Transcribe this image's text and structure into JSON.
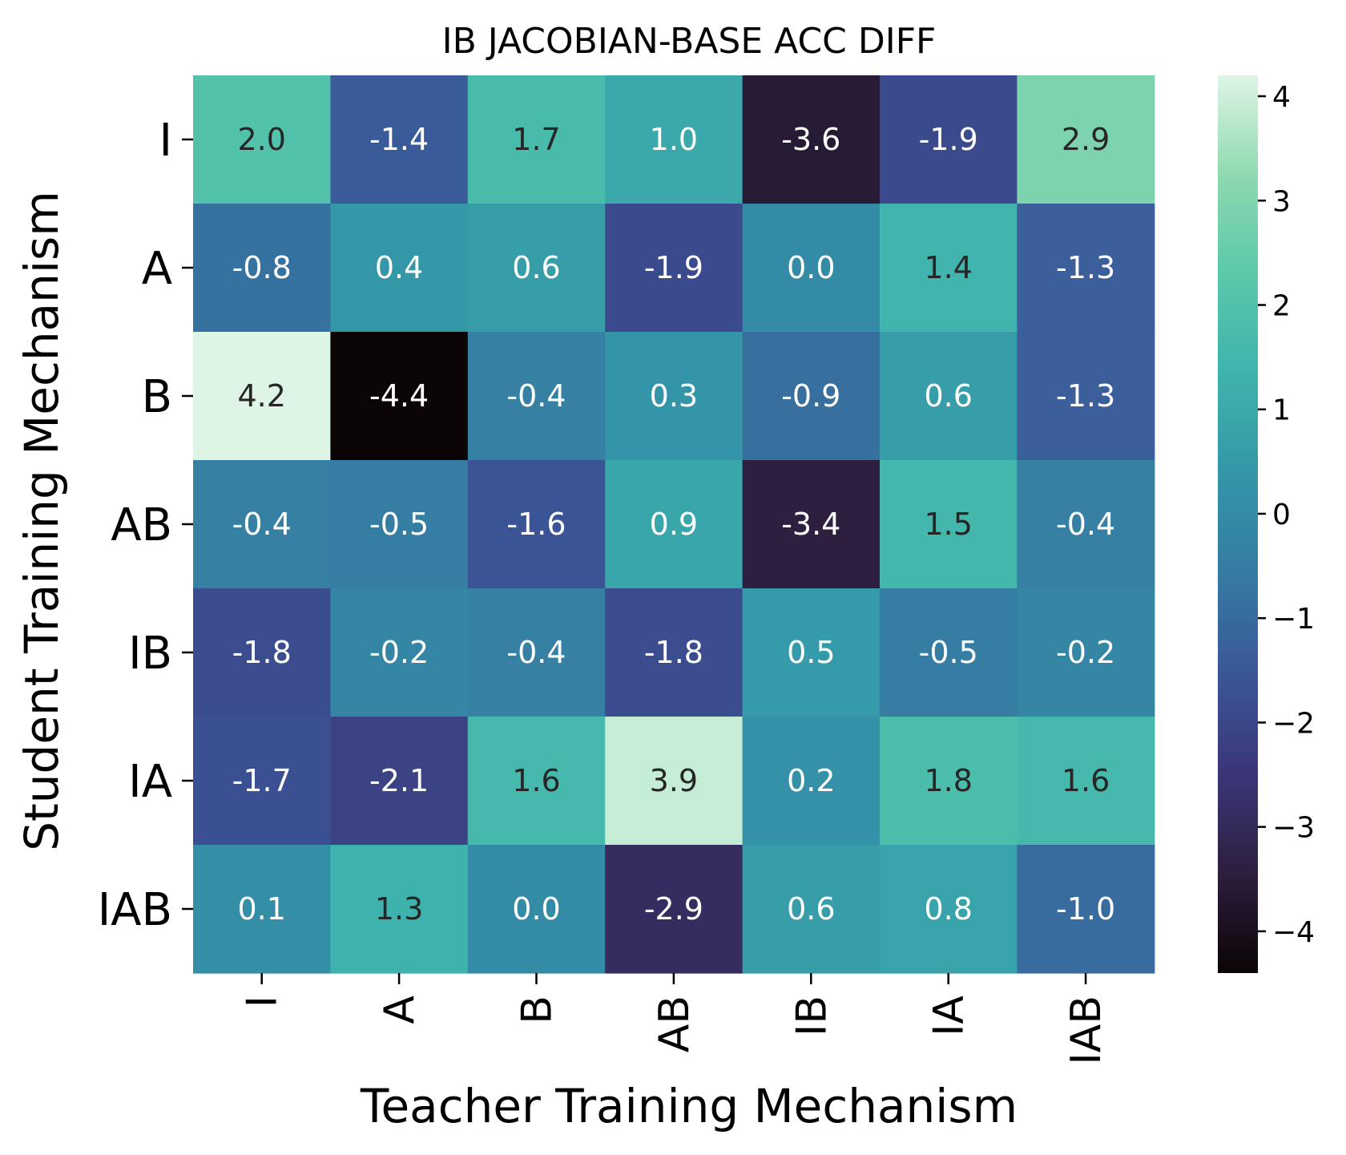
{
  "chart_data": {
    "type": "heatmap",
    "title": "IB JACOBIAN-BASE ACC DIFF",
    "xlabel": "Teacher Training Mechanism",
    "ylabel": "Student Training Mechanism",
    "x_categories": [
      "I",
      "A",
      "B",
      "AB",
      "IB",
      "IA",
      "IAB"
    ],
    "y_categories": [
      "I",
      "A",
      "B",
      "AB",
      "IB",
      "IA",
      "IAB"
    ],
    "values": [
      [
        2.0,
        -1.4,
        1.7,
        1.0,
        -3.6,
        -1.9,
        2.9
      ],
      [
        -0.8,
        0.4,
        0.6,
        -1.9,
        0.0,
        1.4,
        -1.3
      ],
      [
        4.2,
        -4.4,
        -0.4,
        0.3,
        -0.9,
        0.6,
        -1.3
      ],
      [
        -0.4,
        -0.5,
        -1.6,
        0.9,
        -3.4,
        1.5,
        -0.4
      ],
      [
        -1.8,
        -0.2,
        -0.4,
        -1.8,
        0.5,
        -0.5,
        -0.2
      ],
      [
        -1.7,
        -2.1,
        1.6,
        3.9,
        0.2,
        1.8,
        1.6
      ],
      [
        0.1,
        1.3,
        0.0,
        -2.9,
        0.6,
        0.8,
        -1.0
      ]
    ],
    "value_format": "0.0",
    "colorbar": {
      "range": [
        -4.4,
        4.2
      ],
      "ticks": [
        4,
        3,
        2,
        1,
        0,
        -1,
        -2,
        -3,
        -4
      ],
      "tick_labels": [
        "4",
        "3",
        "2",
        "1",
        "0",
        "−1",
        "−2",
        "−3",
        "−4"
      ]
    },
    "colormap": "mako",
    "colormap_stops": [
      "#0b0405",
      "#2d1e3e",
      "#3b3678",
      "#3b5698",
      "#357ba2",
      "#3496a8",
      "#3eb3ad",
      "#5ac8a9",
      "#8fd9b0",
      "#def5e5"
    ]
  }
}
